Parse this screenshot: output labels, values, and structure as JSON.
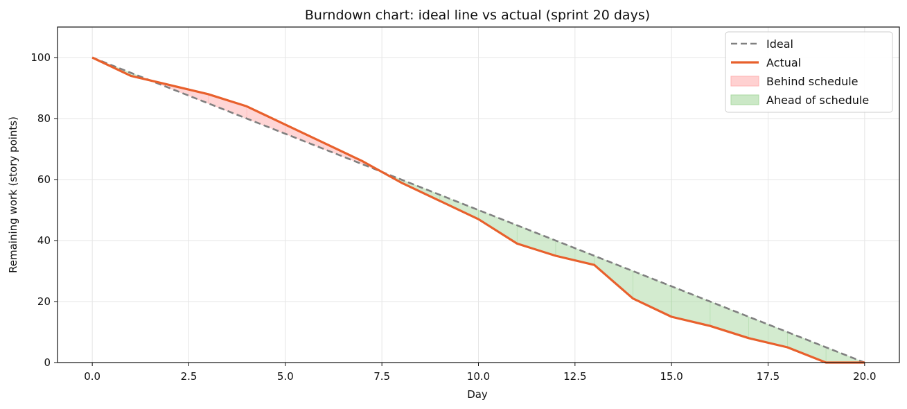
{
  "chart_data": {
    "type": "line",
    "title": "Burndown chart: ideal line vs actual (sprint 20 days)",
    "xlabel": "Day",
    "ylabel": "Remaining work (story points)",
    "xlim": [
      -0.9,
      20.9
    ],
    "ylim": [
      0,
      110
    ],
    "xticks": [
      0.0,
      2.5,
      5.0,
      7.5,
      10.0,
      12.5,
      15.0,
      17.5,
      20.0
    ],
    "xtick_labels": [
      "0.0",
      "2.5",
      "5.0",
      "7.5",
      "10.0",
      "12.5",
      "15.0",
      "17.5",
      "20.0"
    ],
    "yticks": [
      0,
      20,
      40,
      60,
      80,
      100
    ],
    "ytick_labels": [
      "0",
      "20",
      "40",
      "60",
      "80",
      "100"
    ],
    "grid": true,
    "legend_position": "top-right",
    "series": [
      {
        "name": "Ideal",
        "style": "dashed",
        "color": "#808080",
        "x": [
          0,
          20
        ],
        "y": [
          100,
          0
        ]
      },
      {
        "name": "Actual",
        "style": "solid",
        "color": "#E8602C",
        "x": [
          0,
          1,
          2,
          3,
          4,
          5,
          6,
          7,
          8,
          9,
          10,
          11,
          12,
          13,
          14,
          15,
          16,
          17,
          18,
          19,
          20
        ],
        "y": [
          100,
          94,
          91,
          88,
          84,
          78,
          72,
          66,
          59,
          53,
          47,
          39,
          35,
          32,
          21,
          15,
          12,
          8,
          5,
          0,
          0
        ]
      }
    ],
    "fills": [
      {
        "name": "Behind schedule",
        "color": "#ffb3b3",
        "edge": "#ff9999",
        "opacity": 0.55
      },
      {
        "name": "Ahead of schedule",
        "color": "#a8d8a0",
        "edge": "#8cc884",
        "opacity": 0.5
      }
    ]
  }
}
